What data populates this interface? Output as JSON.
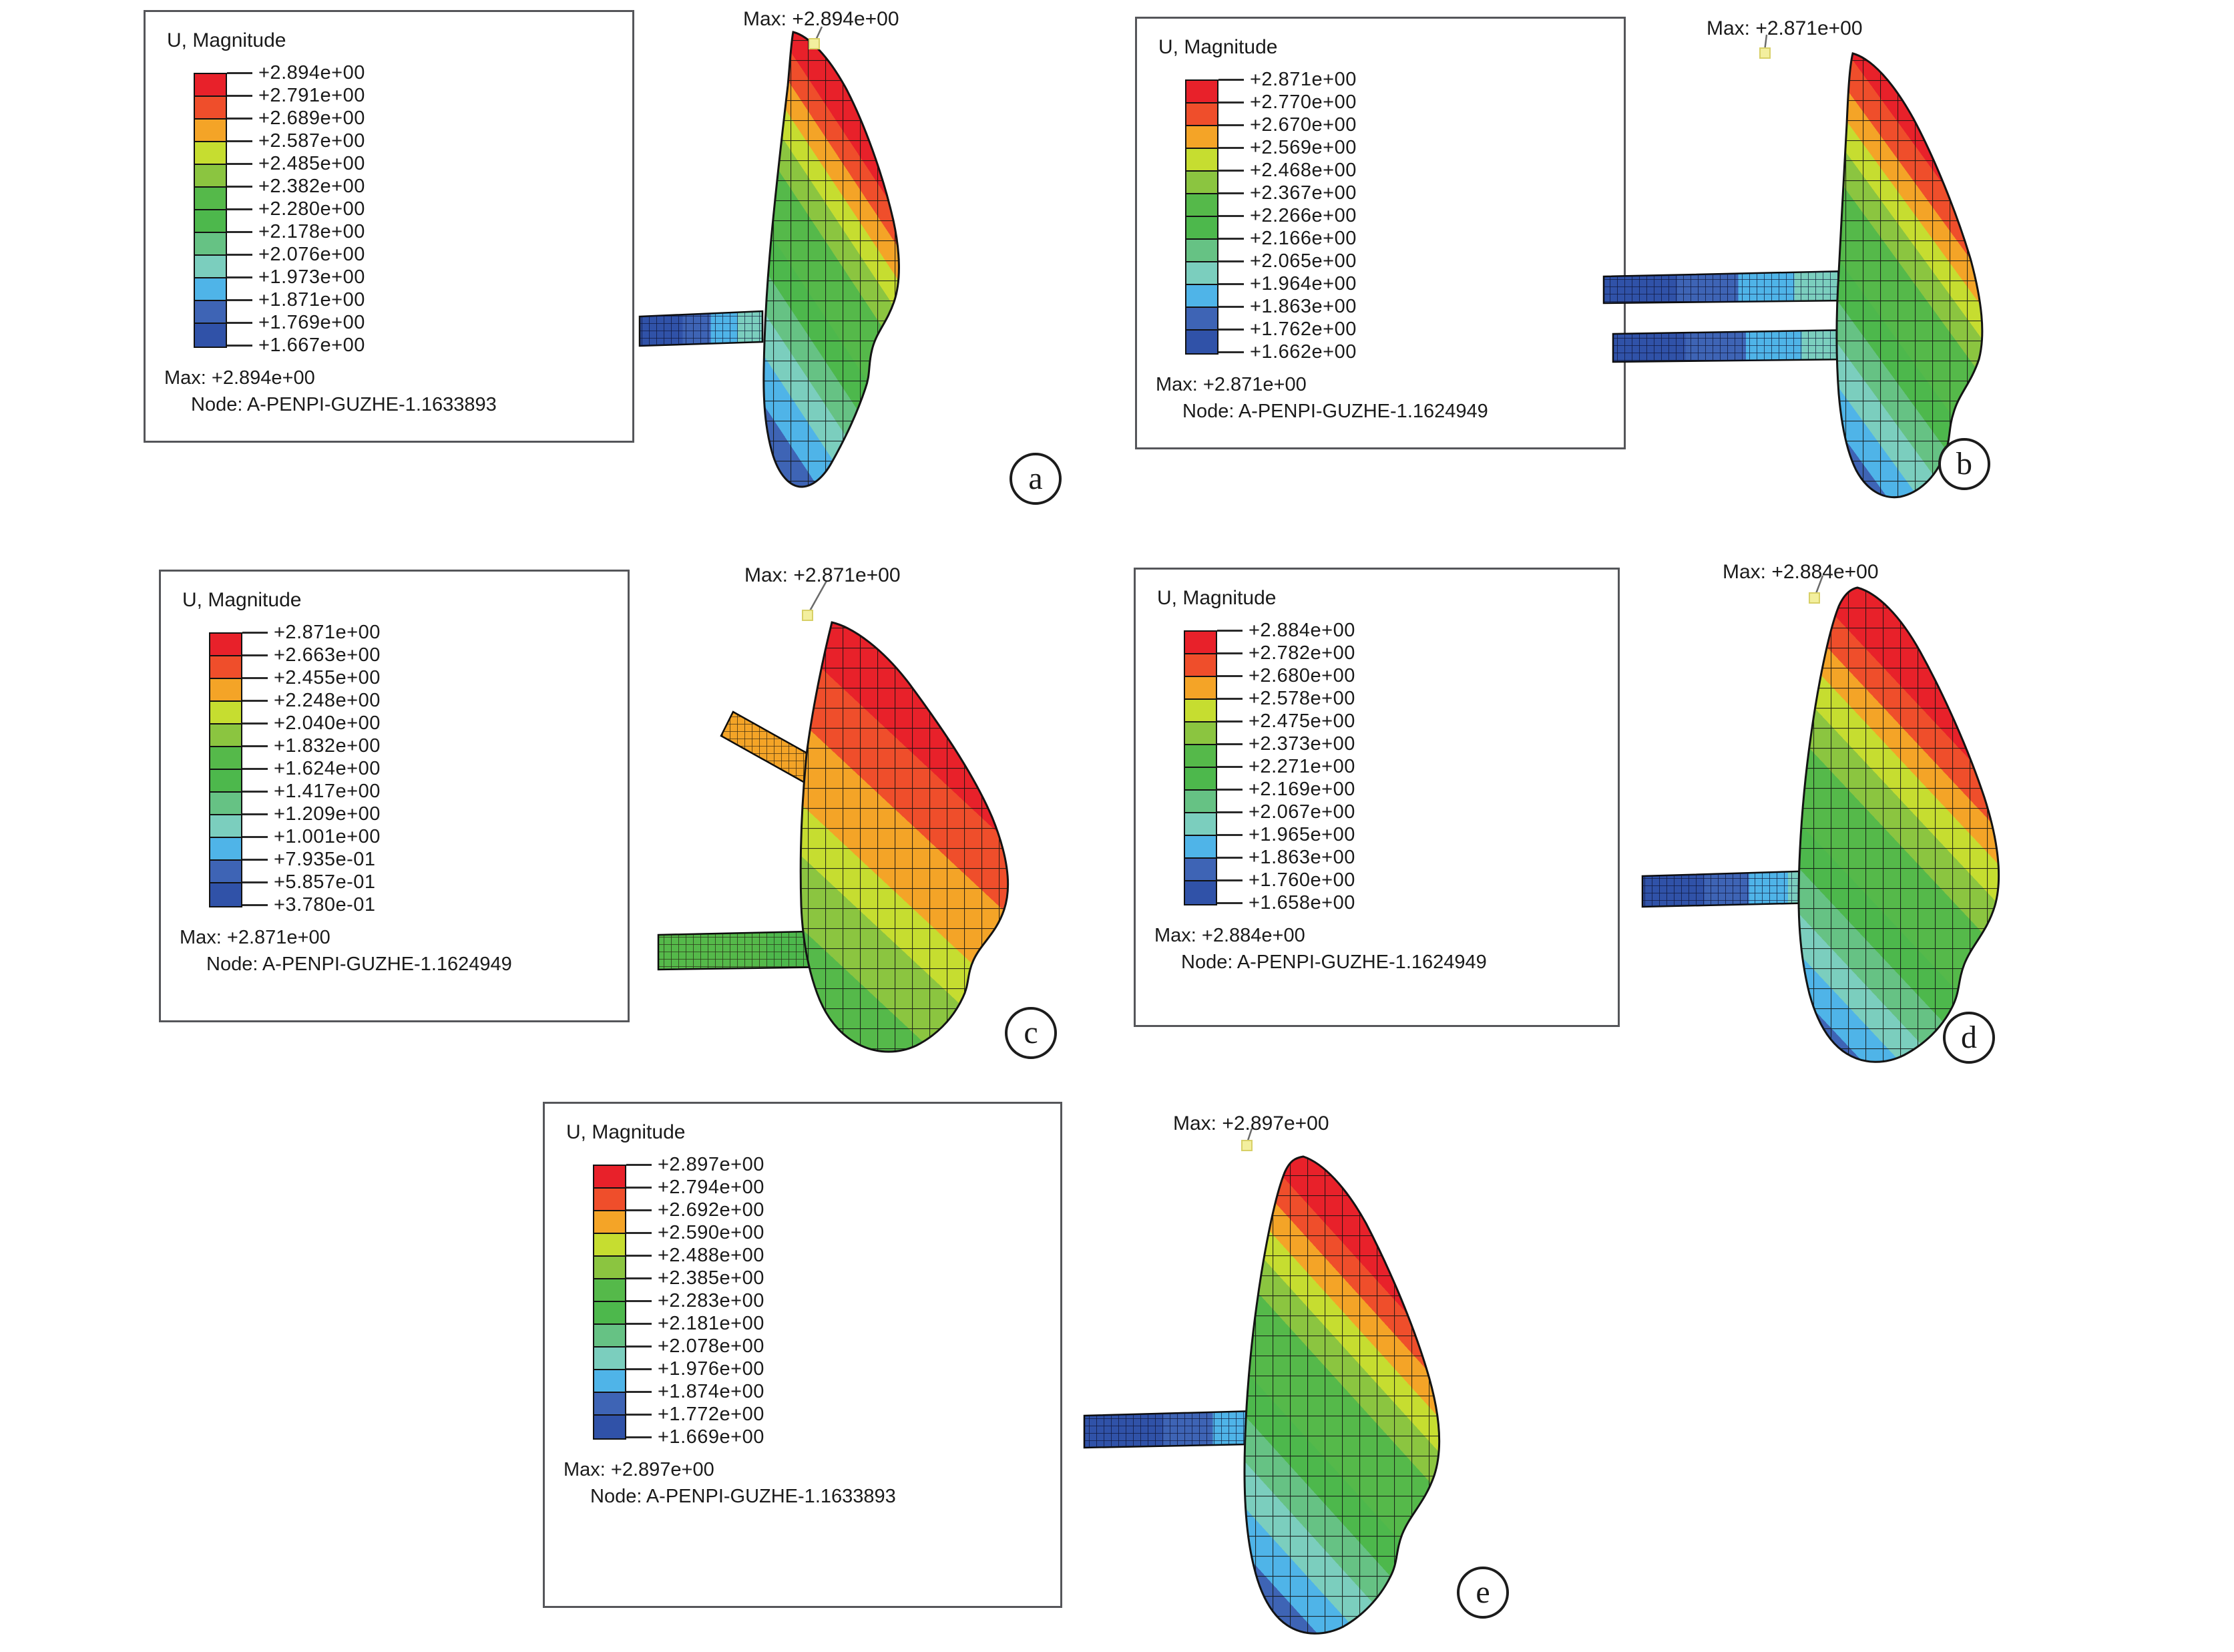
{
  "figure": {
    "background": "#ffffff"
  },
  "colors": {
    "text": "#1a1a1a",
    "border": "#55565a",
    "leader_line": "#6a6a6a",
    "max_marker": "#f3ef9e",
    "max_marker_edge": "#d8d067",
    "bands": [
      "#e8212a",
      "#ef4e2b",
      "#f4a427",
      "#c6dd30",
      "#8bc540",
      "#55b94a",
      "#4db84c",
      "#66c284",
      "#7bcebe",
      "#4fb4e8",
      "#3e64b5",
      "#3052a8"
    ]
  },
  "panels": [
    {
      "label": "a",
      "max_annotation": "Max: +2.894e+00",
      "legend": {
        "title": "U, Magnitude",
        "ticks": [
          "+2.894e+00",
          "+2.791e+00",
          "+2.689e+00",
          "+2.587e+00",
          "+2.485e+00",
          "+2.382e+00",
          "+2.280e+00",
          "+2.178e+00",
          "+2.076e+00",
          "+1.973e+00",
          "+1.871e+00",
          "+1.769e+00",
          "+1.667e+00"
        ],
        "max_line": "Max: +2.894e+00",
        "node_line": "Node: A-PENPI-GUZHE-1.1633893"
      }
    },
    {
      "label": "b",
      "max_annotation": "Max: +2.871e+00",
      "legend": {
        "title": "U, Magnitude",
        "ticks": [
          "+2.871e+00",
          "+2.770e+00",
          "+2.670e+00",
          "+2.569e+00",
          "+2.468e+00",
          "+2.367e+00",
          "+2.266e+00",
          "+2.166e+00",
          "+2.065e+00",
          "+1.964e+00",
          "+1.863e+00",
          "+1.762e+00",
          "+1.662e+00"
        ],
        "max_line": "Max: +2.871e+00",
        "node_line": "Node: A-PENPI-GUZHE-1.1624949"
      }
    },
    {
      "label": "c",
      "max_annotation": "Max: +2.871e+00",
      "legend": {
        "title": "U, Magnitude",
        "ticks": [
          "+2.871e+00",
          "+2.663e+00",
          "+2.455e+00",
          "+2.248e+00",
          "+2.040e+00",
          "+1.832e+00",
          "+1.624e+00",
          "+1.417e+00",
          "+1.209e+00",
          "+1.001e+00",
          "+7.935e-01",
          "+5.857e-01",
          "+3.780e-01"
        ],
        "max_line": "Max: +2.871e+00",
        "node_line": "Node: A-PENPI-GUZHE-1.1624949"
      }
    },
    {
      "label": "d",
      "max_annotation": "Max: +2.884e+00",
      "legend": {
        "title": "U, Magnitude",
        "ticks": [
          "+2.884e+00",
          "+2.782e+00",
          "+2.680e+00",
          "+2.578e+00",
          "+2.475e+00",
          "+2.373e+00",
          "+2.271e+00",
          "+2.169e+00",
          "+2.067e+00",
          "+1.965e+00",
          "+1.863e+00",
          "+1.760e+00",
          "+1.658e+00"
        ],
        "max_line": "Max: +2.884e+00",
        "node_line": "Node: A-PENPI-GUZHE-1.1624949"
      }
    },
    {
      "label": "e",
      "max_annotation": "Max: +2.897e+00",
      "legend": {
        "title": "U, Magnitude",
        "ticks": [
          "+2.897e+00",
          "+2.794e+00",
          "+2.692e+00",
          "+2.590e+00",
          "+2.488e+00",
          "+2.385e+00",
          "+2.283e+00",
          "+2.181e+00",
          "+2.078e+00",
          "+1.976e+00",
          "+1.874e+00",
          "+1.772e+00",
          "+1.669e+00"
        ],
        "max_line": "Max: +2.897e+00",
        "node_line": "Node: A-PENPI-GUZHE-1.1633893"
      }
    }
  ]
}
